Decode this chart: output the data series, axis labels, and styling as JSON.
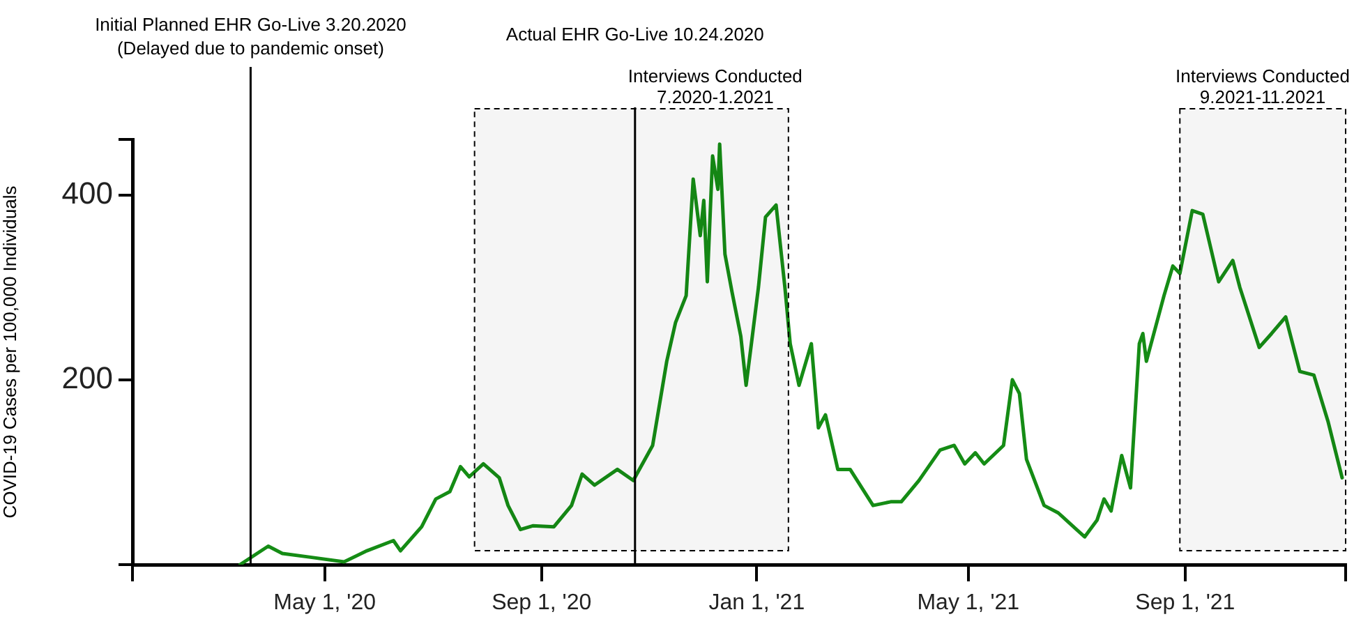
{
  "chart_data": {
    "type": "line",
    "ylabel": "COVID-19 Cases per 100,000 Individuals",
    "x": [
      "2020-03-14",
      "2020-03-30",
      "2020-04-07",
      "2020-04-23",
      "2020-05-12",
      "2020-05-25",
      "2020-06-09",
      "2020-06-13",
      "2020-06-25",
      "2020-07-03",
      "2020-07-11",
      "2020-07-17",
      "2020-07-22",
      "2020-07-30",
      "2020-08-08",
      "2020-08-13",
      "2020-08-20",
      "2020-08-27",
      "2020-09-08",
      "2020-09-18",
      "2020-09-24",
      "2020-10-01",
      "2020-10-14",
      "2020-10-23",
      "2020-11-03",
      "2020-11-11",
      "2020-11-16",
      "2020-11-22",
      "2020-11-26",
      "2020-11-30",
      "2020-12-02",
      "2020-12-04",
      "2020-12-07",
      "2020-12-10",
      "2020-12-11",
      "2020-12-14",
      "2020-12-18",
      "2020-12-23",
      "2020-12-26",
      "2020-12-29",
      "2021-01-02",
      "2021-01-06",
      "2021-01-12",
      "2021-01-17",
      "2021-01-20",
      "2021-01-25",
      "2021-02-01",
      "2021-02-05",
      "2021-02-09",
      "2021-02-16",
      "2021-02-23",
      "2021-03-08",
      "2021-03-18",
      "2021-03-24",
      "2021-04-03",
      "2021-04-15",
      "2021-04-23",
      "2021-04-29",
      "2021-05-05",
      "2021-05-10",
      "2021-05-21",
      "2021-05-26",
      "2021-05-30",
      "2021-06-03",
      "2021-06-13",
      "2021-06-21",
      "2021-07-06",
      "2021-07-13",
      "2021-07-17",
      "2021-07-21",
      "2021-07-27",
      "2021-08-01",
      "2021-08-06",
      "2021-08-08",
      "2021-08-10",
      "2021-08-20",
      "2021-08-25",
      "2021-08-29",
      "2021-09-05",
      "2021-09-11",
      "2021-09-20",
      "2021-09-28",
      "2021-10-02",
      "2021-10-13",
      "2021-10-20",
      "2021-10-28",
      "2021-11-05",
      "2021-11-13",
      "2021-11-21",
      "2021-11-29"
    ],
    "series": [
      {
        "color": "#158c15",
        "values": [
          0,
          20,
          12,
          8,
          3,
          15,
          26,
          15,
          41,
          71,
          79,
          106,
          95,
          109,
          94,
          64,
          38,
          42,
          41,
          64,
          98,
          86,
          103,
          91,
          129,
          220,
          262,
          291,
          417,
          356,
          394,
          306,
          442,
          406,
          455,
          336,
          295,
          247,
          194,
          239,
          300,
          376,
          389,
          300,
          239,
          194,
          239,
          148,
          162,
          103,
          103,
          64,
          68,
          68,
          91,
          124,
          129,
          109,
          121,
          109,
          129,
          200,
          185,
          114,
          64,
          56,
          30,
          48,
          71,
          58,
          118,
          83,
          239,
          250,
          220,
          291,
          323,
          315,
          383,
          379,
          306,
          329,
          300,
          235,
          250,
          268,
          209,
          205,
          155,
          94
        ]
      }
    ],
    "xlim": [
      "2020-01-13",
      "2021-12-01"
    ],
    "xticks": [
      {
        "value": "2020-01-13",
        "label": null
      },
      {
        "value": "2020-05-01",
        "label": "May 1, '20"
      },
      {
        "value": "2020-09-01",
        "label": "Sep 1, '20"
      },
      {
        "value": "2021-01-01",
        "label": "Jan 1, '21"
      },
      {
        "value": "2021-05-01",
        "label": "May 1, '21"
      },
      {
        "value": "2021-09-01",
        "label": "Sep 1, '21"
      },
      {
        "value": "2021-12-01",
        "label": null
      }
    ],
    "ylim": [
      0,
      460
    ],
    "yticks": [
      {
        "value": 0,
        "label": null
      },
      200,
      400,
      {
        "value": 460,
        "label": null
      }
    ],
    "ref_lines": [
      {
        "axis": "x",
        "value": "2020-03-20",
        "label": "Initial Planned EHR Go-Live 3.20.2020\n(Delayed due to pandemic onset)"
      },
      {
        "axis": "x",
        "value": "2020-10-24",
        "label": "Actual EHR Go-Live 10.24.2020"
      }
    ],
    "bands": [
      {
        "axis": "x",
        "from": "2020-07-25",
        "to": "2021-01-19",
        "label": "Interviews Conducted\n7.2020-1.2021"
      },
      {
        "axis": "x",
        "from": "2021-08-29",
        "to": "2021-12-01",
        "label": "Interviews Conducted\n9.2021-11.2021"
      }
    ],
    "grid": false,
    "marker": "none",
    "line_style": "solid"
  }
}
